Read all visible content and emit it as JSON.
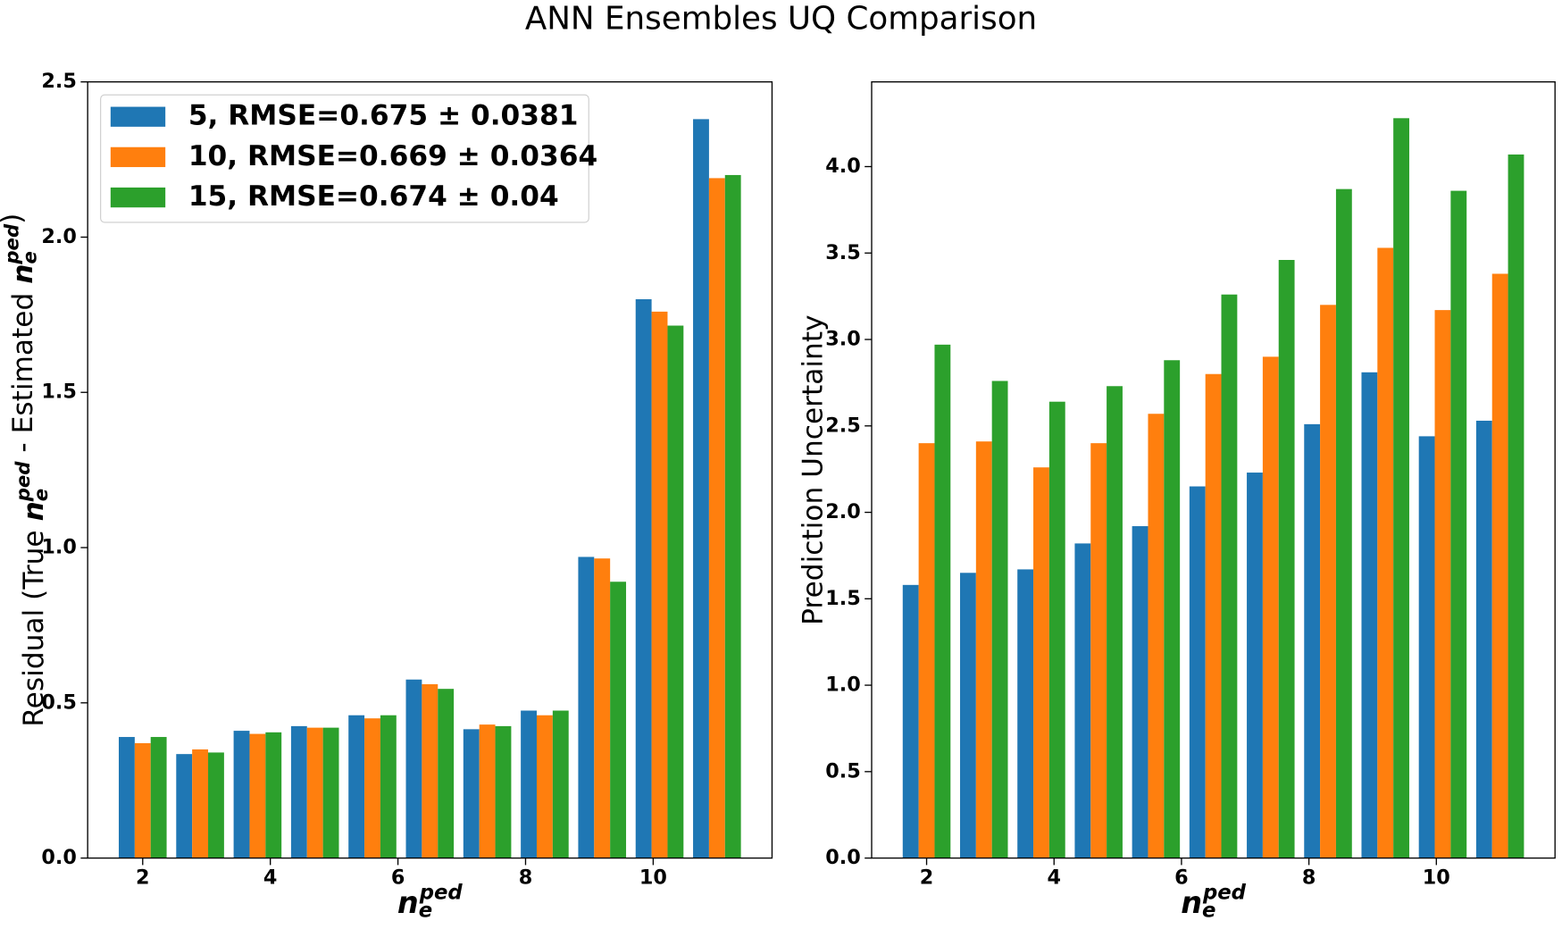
{
  "title": "ANN Ensembles UQ Comparison",
  "chart_data": [
    {
      "type": "bar",
      "xlabel": [
        "n",
        "e",
        "ped"
      ],
      "ylabel": [
        "Residual (True ",
        "n",
        "e",
        "ped",
        " - Estimated ",
        "n",
        "e",
        "ped",
        ")"
      ],
      "x": [
        2,
        2.9,
        3.8,
        4.7,
        5.6,
        6.5,
        7.4,
        8.3,
        9.2,
        10.1,
        11
      ],
      "series": [
        {
          "name": "5, RMSE=0.675 ± 0.0381",
          "color": "#1f77b4",
          "values": [
            0.39,
            0.335,
            0.41,
            0.425,
            0.46,
            0.575,
            0.415,
            0.475,
            0.97,
            1.8,
            2.38
          ]
        },
        {
          "name": "10, RMSE=0.669 ± 0.0364",
          "color": "#ff7f0e",
          "values": [
            0.37,
            0.35,
            0.4,
            0.42,
            0.45,
            0.56,
            0.43,
            0.46,
            0.965,
            1.76,
            2.19
          ]
        },
        {
          "name": "15, RMSE=0.674 ± 0.04",
          "color": "#2ca02c",
          "values": [
            0.39,
            0.34,
            0.405,
            0.42,
            0.46,
            0.545,
            0.425,
            0.475,
            0.89,
            1.715,
            2.2
          ]
        }
      ],
      "bar_width": 0.25,
      "xlim": [
        1.1375,
        11.8625
      ],
      "xticks": [
        2,
        4,
        6,
        8,
        10
      ],
      "ylim": [
        0,
        2.5
      ],
      "yticks": [
        {
          "value": 0,
          "label": "0.0"
        },
        0.5,
        {
          "value": 1,
          "label": "1.0"
        },
        1.5,
        {
          "value": 2,
          "label": "2.0"
        },
        2.5
      ],
      "legend": "upper left"
    },
    {
      "type": "bar",
      "xlabel": [
        "n",
        "e",
        "ped"
      ],
      "ylabel": [
        "Prediction Uncertainty"
      ],
      "x": [
        2,
        2.9,
        3.8,
        4.7,
        5.6,
        6.5,
        7.4,
        8.3,
        9.2,
        10.1,
        11
      ],
      "series": [
        {
          "name": "5",
          "color": "#1f77b4",
          "values": [
            1.58,
            1.65,
            1.67,
            1.82,
            1.92,
            2.15,
            2.23,
            2.51,
            2.81,
            2.44,
            2.53
          ]
        },
        {
          "name": "10",
          "color": "#ff7f0e",
          "values": [
            2.4,
            2.41,
            2.26,
            2.4,
            2.57,
            2.8,
            2.9,
            3.2,
            3.53,
            3.17,
            3.38
          ]
        },
        {
          "name": "15",
          "color": "#2ca02c",
          "values": [
            2.97,
            2.76,
            2.64,
            2.73,
            2.88,
            3.26,
            3.46,
            3.87,
            4.28,
            3.86,
            4.07
          ]
        }
      ],
      "bar_width": 0.25,
      "xlim": [
        1.1375,
        11.8625
      ],
      "xticks": [
        2,
        4,
        6,
        8,
        10
      ],
      "ylim": [
        0,
        4.49
      ],
      "yticks": [
        {
          "value": 0,
          "label": "0.0"
        },
        0.5,
        {
          "value": 1,
          "label": "1.0"
        },
        1.5,
        {
          "value": 2,
          "label": "2.0"
        },
        2.5,
        {
          "value": 3,
          "label": "3.0"
        },
        3.5,
        {
          "value": 4,
          "label": "4.0"
        }
      ],
      "legend": null
    }
  ]
}
